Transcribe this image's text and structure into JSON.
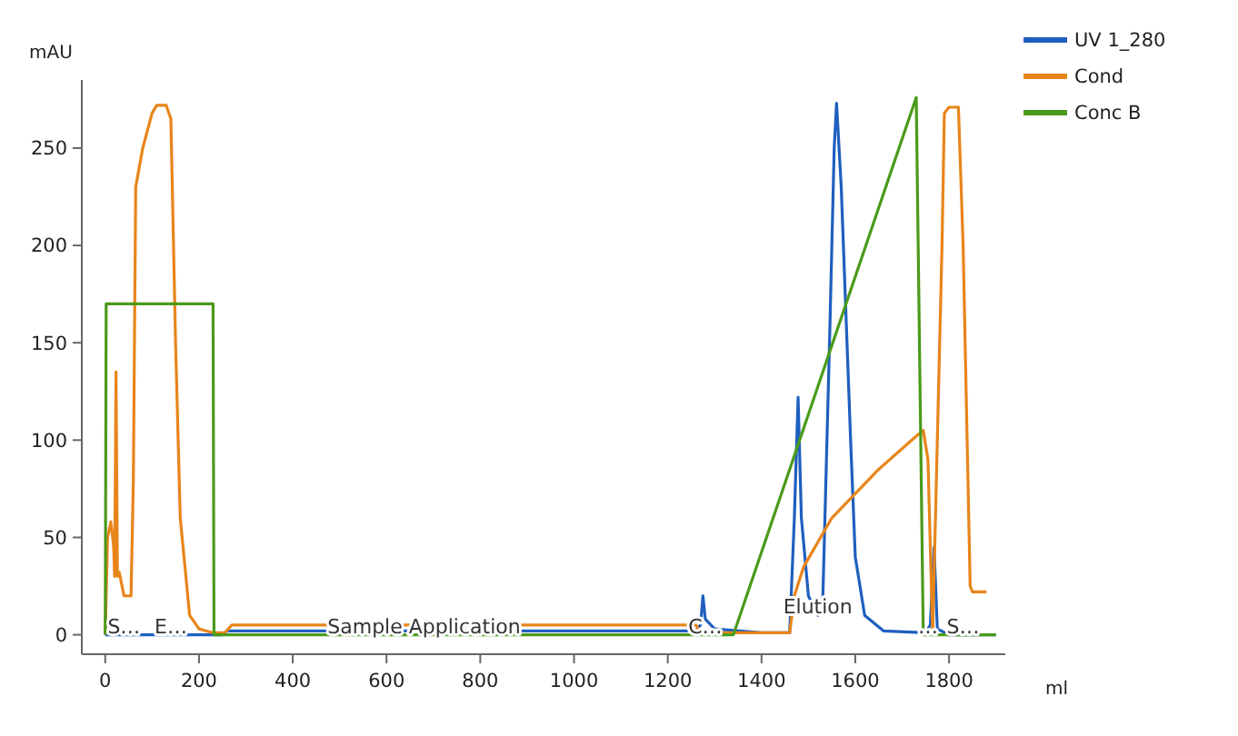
{
  "chart_data": {
    "type": "line",
    "ylabel": "mAU",
    "xlabel": "ml",
    "xlim": [
      -50,
      1920
    ],
    "ylim": [
      -10,
      285
    ],
    "xticks": [
      0,
      200,
      400,
      600,
      800,
      1000,
      1200,
      1400,
      1600,
      1800
    ],
    "yticks": [
      0,
      50,
      100,
      150,
      200,
      250
    ],
    "grid": false,
    "legend": "top right",
    "marker": "none",
    "line_style": "solid",
    "series": [
      {
        "name": "UV 1_280",
        "color": "#1f5fbf",
        "x": [
          0,
          250,
          260,
          1260,
          1270,
          1275,
          1280,
          1300,
          1400,
          1460,
          1470,
          1478,
          1485,
          1500,
          1520,
          1530,
          1545,
          1555,
          1560,
          1570,
          1590,
          1600,
          1620,
          1660,
          1750,
          1760,
          1768,
          1775,
          1800,
          1900
        ],
        "values": [
          0,
          0,
          2,
          2,
          5,
          20,
          8,
          3,
          1,
          1,
          60,
          122,
          60,
          20,
          10,
          12,
          150,
          250,
          273,
          230,
          100,
          40,
          10,
          2,
          1,
          5,
          45,
          3,
          0,
          0
        ]
      },
      {
        "name": "Cond",
        "color": "#e8851a",
        "x": [
          0,
          5,
          12,
          18,
          20,
          23,
          26,
          30,
          40,
          55,
          60,
          65,
          80,
          100,
          110,
          130,
          140,
          150,
          160,
          180,
          200,
          230,
          255,
          270,
          1260,
          1270,
          1460,
          1470,
          1490,
          1550,
          1650,
          1730,
          1745,
          1755,
          1765,
          1785,
          1790,
          1800,
          1820,
          1830,
          1845,
          1850,
          1880
        ],
        "values": [
          0,
          50,
          58,
          45,
          30,
          135,
          30,
          32,
          20,
          20,
          80,
          230,
          250,
          268,
          272,
          272,
          265,
          150,
          60,
          10,
          3,
          1,
          1,
          5,
          5,
          1,
          1,
          20,
          35,
          60,
          85,
          102,
          105,
          90,
          0,
          200,
          268,
          271,
          271,
          200,
          25,
          22,
          22
        ]
      },
      {
        "name": "Conc B",
        "color": "#4a9a1a",
        "x": [
          0,
          2,
          230,
          232,
          1340,
          1730,
          1745,
          1900
        ],
        "values": [
          0,
          170,
          170,
          0,
          0,
          276,
          0,
          0
        ]
      }
    ],
    "annotations": [
      {
        "text": "S…",
        "x": 40,
        "y": 0
      },
      {
        "text": "E…",
        "x": 140,
        "y": 0
      },
      {
        "text": "Sample Application",
        "x": 680,
        "y": 0
      },
      {
        "text": "C…",
        "x": 1280,
        "y": 0
      },
      {
        "text": "Elution",
        "x": 1520,
        "y": 10
      },
      {
        "text": "…",
        "x": 1755,
        "y": 0
      },
      {
        "text": "S…",
        "x": 1830,
        "y": 0
      }
    ]
  }
}
